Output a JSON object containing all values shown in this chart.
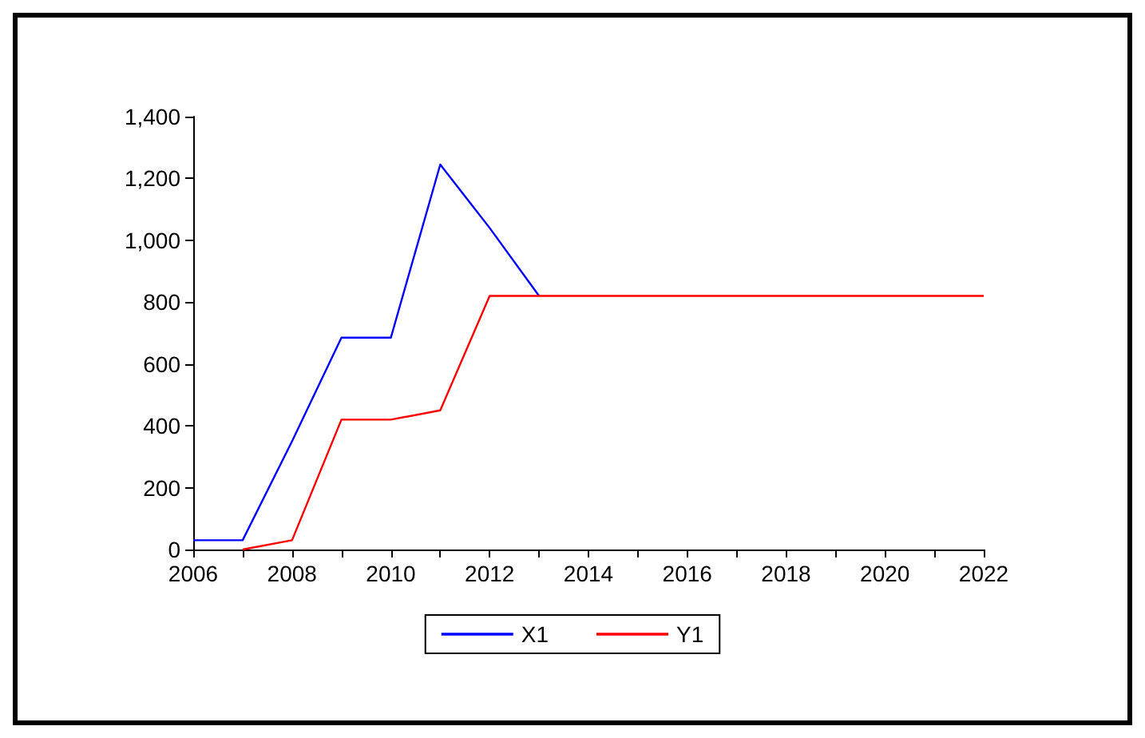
{
  "chart_data": {
    "type": "line",
    "x": [
      2006,
      2007,
      2008,
      2009,
      2010,
      2011,
      2012,
      2013,
      2014,
      2015,
      2016,
      2017,
      2018,
      2019,
      2020,
      2021,
      2022
    ],
    "series": [
      {
        "name": "X1",
        "color": "#0000ff",
        "values": [
          30,
          30,
          350,
          685,
          685,
          1245,
          1040,
          820,
          null,
          null,
          null,
          null,
          null,
          null,
          null,
          null,
          null
        ]
      },
      {
        "name": "Y1",
        "color": "#ff0000",
        "values": [
          null,
          0,
          30,
          420,
          420,
          450,
          820,
          820,
          820,
          820,
          820,
          820,
          820,
          820,
          820,
          820,
          820
        ]
      }
    ],
    "xlim": [
      2006,
      2022
    ],
    "xticks": [
      2006,
      {
        "value": 2007,
        "label": null
      },
      2008,
      {
        "value": 2009,
        "label": null
      },
      2010,
      {
        "value": 2011,
        "label": null
      },
      2012,
      {
        "value": 2013,
        "label": null
      },
      2014,
      {
        "value": 2015,
        "label": null
      },
      2016,
      {
        "value": 2017,
        "label": null
      },
      2018,
      {
        "value": 2019,
        "label": null
      },
      2020,
      {
        "value": 2021,
        "label": null
      },
      2022
    ],
    "ylim": [
      0,
      1400
    ],
    "yticks": [
      0,
      200,
      400,
      600,
      800,
      {
        "value": 1000,
        "label": "1,000"
      },
      {
        "value": 1200,
        "label": "1,200"
      },
      {
        "value": 1400,
        "label": "1,400"
      }
    ],
    "grid": false,
    "legend": "bottom",
    "marker": "none",
    "line_style": "solid"
  }
}
